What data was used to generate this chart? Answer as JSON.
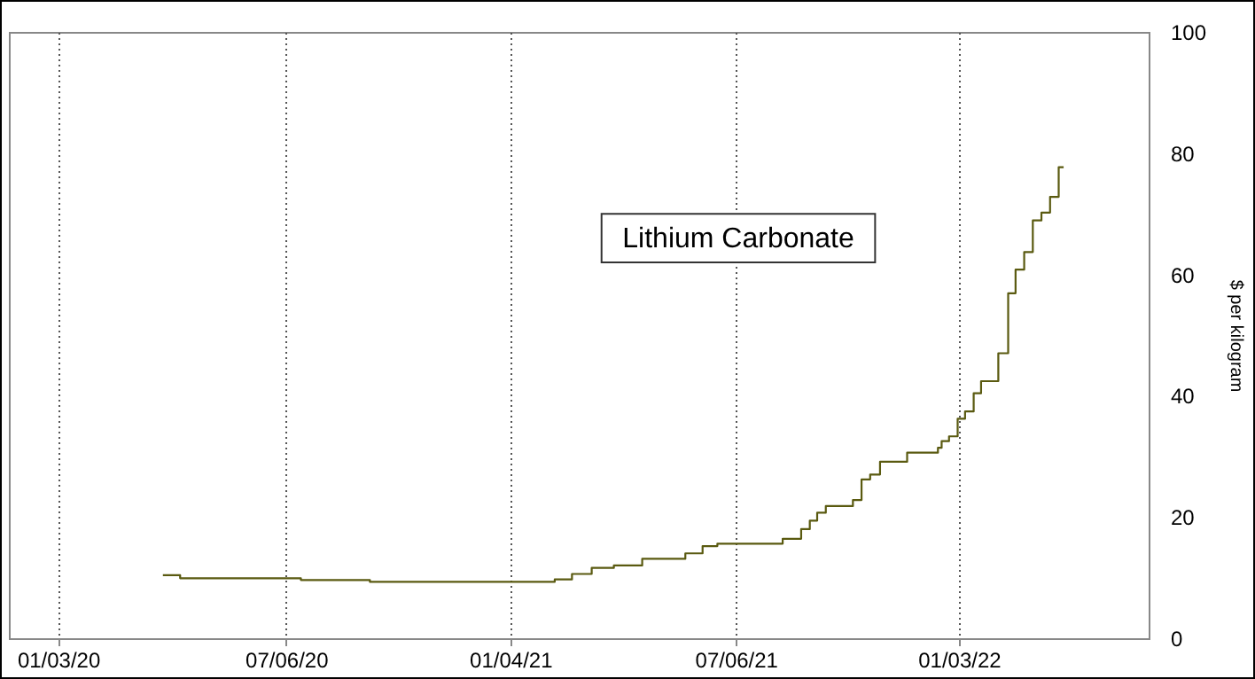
{
  "chart_data": {
    "type": "step",
    "x": [
      "2020-03-28",
      "2020-04-11",
      "2020-07-18",
      "2020-09-12",
      "2021-02-09",
      "2021-02-23",
      "2021-03-11",
      "2021-03-29",
      "2021-04-21",
      "2021-05-26",
      "2021-06-09",
      "2021-06-21",
      "2021-08-13",
      "2021-08-28",
      "2021-09-04",
      "2021-09-10",
      "2021-09-17",
      "2021-10-09",
      "2021-10-16",
      "2021-10-23",
      "2021-10-31",
      "2021-11-22",
      "2021-12-17",
      "2021-12-20",
      "2021-12-26",
      "2022-01-02",
      "2022-01-08",
      "2022-01-15",
      "2022-01-21",
      "2022-02-04",
      "2022-02-12",
      "2022-02-18",
      "2022-02-25",
      "2022-03-04",
      "2022-03-11",
      "2022-03-18",
      "2022-03-25",
      "2022-03-29"
    ],
    "series": [
      {
        "name": "Lithium Carbonate",
        "color": "#5a5a10",
        "values": [
          10.4,
          9.9,
          9.6,
          9.3,
          9.7,
          10.6,
          11.6,
          12.0,
          13.1,
          14.0,
          15.2,
          15.6,
          16.4,
          18.0,
          19.4,
          20.7,
          21.8,
          22.8,
          26.2,
          27.0,
          29.1,
          30.6,
          31.4,
          32.5,
          33.3,
          36.2,
          37.4,
          40.4,
          42.4,
          47.0,
          56.9,
          60.8,
          63.7,
          68.9,
          70.2,
          72.8,
          77.7,
          77.7
        ]
      }
    ],
    "xlim": [
      "2019-11-24",
      "2022-06-06"
    ],
    "xticks": [
      {
        "value": "2020-01-03",
        "label": "01/03/20"
      },
      {
        "value": "2020-07-06",
        "label": "07/06/20"
      },
      {
        "value": "2021-01-04",
        "label": "01/04/21"
      },
      {
        "value": "2021-07-06",
        "label": "07/06/21"
      },
      {
        "value": "2022-01-03",
        "label": "01/03/22"
      }
    ],
    "ylim": [
      0,
      100
    ],
    "yticks": [
      0,
      20,
      40,
      60,
      80,
      100
    ],
    "ylabel": "$ per kilogram",
    "grid": "x",
    "marker": "none",
    "line_style": "solid"
  }
}
